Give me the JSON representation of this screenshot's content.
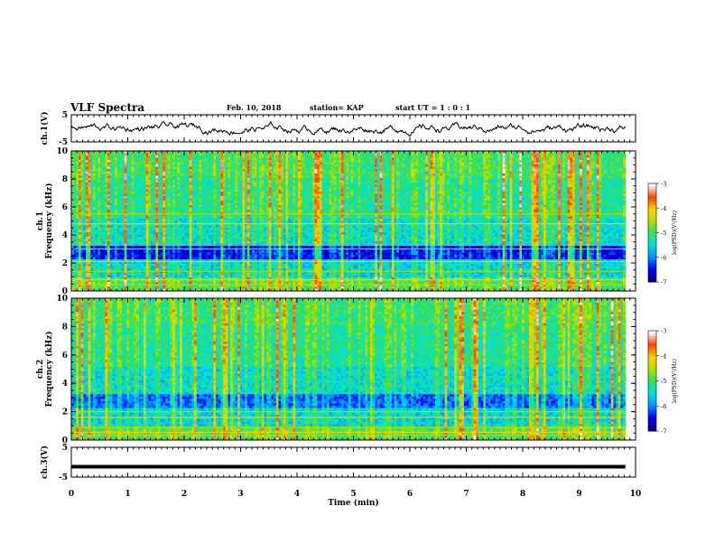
{
  "header": {
    "title": "VLF Spectra",
    "date": "Feb. 10, 2018",
    "station": "station= KAP",
    "start": "start  UT =   1 : 0  : 1"
  },
  "colors": {
    "trace": "#000000",
    "colormap": [
      "#00007a",
      "#0000ff",
      "#0090ff",
      "#00e0e0",
      "#30e060",
      "#b0e000",
      "#ffd000",
      "#ff4000",
      "#ffffff"
    ]
  },
  "chart_data": [
    {
      "type": "line",
      "name": "ch1-waveform",
      "ylabel": "ch.1(V)",
      "ylim": [
        -5,
        5
      ],
      "y_ticks": [
        "5",
        "-5"
      ],
      "xlim": [
        0,
        10
      ],
      "x_range": [
        0,
        9.82
      ]
    },
    {
      "type": "heatmap",
      "name": "ch1-spectrogram",
      "ylabel": "ch.1\nFrequency (kHz)",
      "ylim": [
        0,
        10
      ],
      "y_ticks": [
        "0",
        "2",
        "4",
        "6",
        "8",
        "10"
      ],
      "xlim": [
        0,
        10
      ],
      "x_range": [
        0,
        9.82
      ],
      "colorbar": {
        "label": "log(PSD)(V²/Hz)",
        "ticks": [
          "-3",
          "-4",
          "-5",
          "-6",
          "-7"
        ],
        "range": [
          -7,
          -3
        ]
      }
    },
    {
      "type": "heatmap",
      "name": "ch2-spectrogram",
      "ylabel": "ch.2\nFrequency (kHz)",
      "ylim": [
        0,
        10
      ],
      "y_ticks": [
        "0",
        "2",
        "4",
        "6",
        "8",
        "10"
      ],
      "xlim": [
        0,
        10
      ],
      "x_range": [
        0,
        9.82
      ],
      "colorbar": {
        "label": "log(PSD)(V²/Hz)",
        "ticks": [
          "-3",
          "-4",
          "-5",
          "-6",
          "-7"
        ],
        "range": [
          -7,
          -3
        ]
      }
    },
    {
      "type": "line",
      "name": "ch3-waveform",
      "ylabel": "ch.3(V)",
      "ylim": [
        -5,
        5
      ],
      "y_ticks": [
        "5",
        "-5"
      ],
      "xlim": [
        0,
        10
      ],
      "x_range": [
        0,
        9.82
      ],
      "values_constant": -1.5
    }
  ],
  "x_axis": {
    "label": "Time (min)",
    "ticks": [
      "0",
      "1",
      "2",
      "3",
      "4",
      "5",
      "6",
      "7",
      "8",
      "9",
      "10"
    ]
  }
}
